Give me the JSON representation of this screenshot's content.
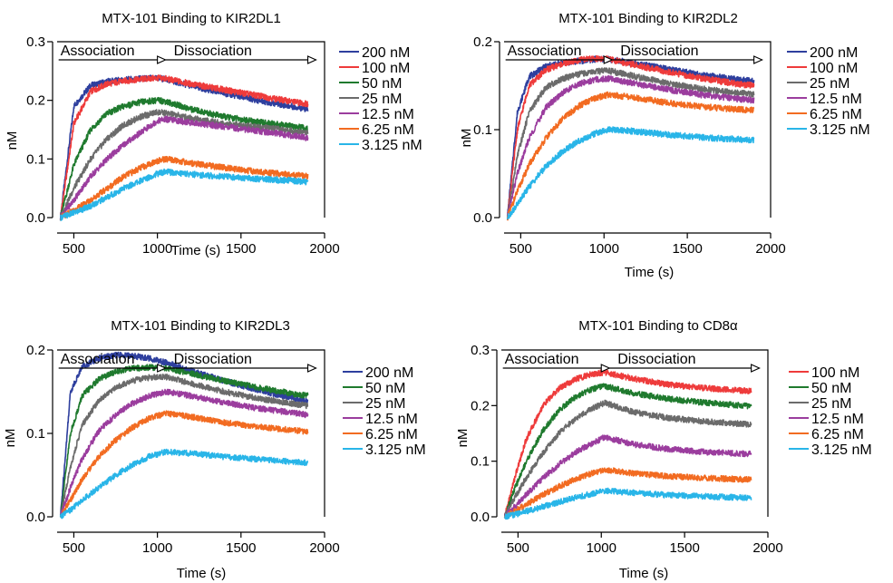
{
  "chart_data": [
    {
      "type": "line",
      "title": "MTX-101 Binding to KIR2DL1",
      "xlabel": "Time (s)",
      "ylabel": "nM",
      "xlim": [
        400,
        2000
      ],
      "ylim": [
        0,
        0.3
      ],
      "xticks": [
        "500",
        "1000",
        "1500",
        "2000"
      ],
      "yticks": [
        "0.0",
        "0.1",
        "0.2",
        "0.3"
      ],
      "phases": [
        "Association",
        "Dissociation"
      ],
      "series": [
        {
          "name": "200 nM",
          "color": "#2e3f9e",
          "x": [
            420,
            500,
            600,
            700,
            800,
            900,
            1000,
            1050,
            1200,
            1400,
            1600,
            1800,
            1900
          ],
          "y": [
            0.0,
            0.19,
            0.225,
            0.232,
            0.235,
            0.237,
            0.238,
            0.236,
            0.225,
            0.212,
            0.2,
            0.19,
            0.185
          ]
        },
        {
          "name": "100 nM",
          "color": "#ee3b3b",
          "x": [
            420,
            500,
            600,
            700,
            800,
            900,
            1000,
            1050,
            1200,
            1400,
            1600,
            1800,
            1900
          ],
          "y": [
            0.0,
            0.16,
            0.215,
            0.228,
            0.233,
            0.236,
            0.238,
            0.237,
            0.228,
            0.218,
            0.208,
            0.198,
            0.194
          ]
        },
        {
          "name": "50 nM",
          "color": "#1f7a2e",
          "x": [
            420,
            500,
            600,
            700,
            800,
            900,
            1000,
            1050,
            1200,
            1400,
            1600,
            1800,
            1900
          ],
          "y": [
            0.0,
            0.09,
            0.15,
            0.178,
            0.19,
            0.197,
            0.2,
            0.198,
            0.185,
            0.172,
            0.163,
            0.156,
            0.152
          ]
        },
        {
          "name": "25 nM",
          "color": "#6b6b6b",
          "x": [
            420,
            500,
            600,
            700,
            800,
            900,
            1000,
            1050,
            1200,
            1400,
            1600,
            1800,
            1900
          ],
          "y": [
            0.0,
            0.05,
            0.1,
            0.135,
            0.158,
            0.172,
            0.18,
            0.178,
            0.17,
            0.16,
            0.155,
            0.148,
            0.145
          ]
        },
        {
          "name": "12.5 nM",
          "color": "#9b3d9e",
          "x": [
            420,
            500,
            600,
            700,
            800,
            900,
            1000,
            1050,
            1200,
            1400,
            1600,
            1800,
            1900
          ],
          "y": [
            0.0,
            0.03,
            0.07,
            0.1,
            0.125,
            0.145,
            0.165,
            0.168,
            0.162,
            0.155,
            0.148,
            0.14,
            0.136
          ]
        },
        {
          "name": "6.25 nM",
          "color": "#f26b21",
          "x": [
            420,
            500,
            600,
            700,
            800,
            900,
            1000,
            1050,
            1200,
            1400,
            1600,
            1800,
            1900
          ],
          "y": [
            0.0,
            0.012,
            0.03,
            0.05,
            0.07,
            0.085,
            0.097,
            0.1,
            0.093,
            0.085,
            0.078,
            0.073,
            0.07
          ]
        },
        {
          "name": "3.125 nM",
          "color": "#29b5e8",
          "x": [
            420,
            500,
            600,
            700,
            800,
            900,
            1000,
            1050,
            1200,
            1400,
            1600,
            1800,
            1900
          ],
          "y": [
            0.0,
            0.008,
            0.02,
            0.035,
            0.05,
            0.063,
            0.075,
            0.078,
            0.074,
            0.07,
            0.066,
            0.063,
            0.061
          ]
        }
      ]
    },
    {
      "type": "line",
      "title": "MTX-101 Binding to KIR2DL2",
      "xlabel": "Time (s)",
      "ylabel": "nM",
      "xlim": [
        400,
        2000
      ],
      "ylim": [
        0,
        0.2
      ],
      "xticks": [
        "500",
        "1000",
        "1500",
        "2000"
      ],
      "yticks": [
        "0.0",
        "0.1",
        "0.2"
      ],
      "phases": [
        "Association",
        "Dissociation"
      ],
      "series": [
        {
          "name": "200 nM",
          "color": "#2e3f9e",
          "x": [
            420,
            480,
            550,
            650,
            750,
            850,
            950,
            1030,
            1200,
            1400,
            1600,
            1800,
            1900
          ],
          "y": [
            0.0,
            0.12,
            0.16,
            0.172,
            0.176,
            0.178,
            0.18,
            0.18,
            0.175,
            0.168,
            0.162,
            0.157,
            0.155
          ]
        },
        {
          "name": "100 nM",
          "color": "#ee3b3b",
          "x": [
            420,
            480,
            550,
            650,
            750,
            850,
            950,
            1030,
            1200,
            1400,
            1600,
            1800,
            1900
          ],
          "y": [
            0.0,
            0.1,
            0.15,
            0.168,
            0.175,
            0.179,
            0.181,
            0.18,
            0.173,
            0.165,
            0.158,
            0.152,
            0.15
          ]
        },
        {
          "name": "25 nM",
          "color": "#6b6b6b",
          "x": [
            420,
            480,
            550,
            650,
            750,
            850,
            950,
            1030,
            1200,
            1400,
            1600,
            1800,
            1900
          ],
          "y": [
            0.0,
            0.07,
            0.12,
            0.148,
            0.158,
            0.163,
            0.166,
            0.167,
            0.16,
            0.152,
            0.146,
            0.142,
            0.14
          ]
        },
        {
          "name": "12.5 nM",
          "color": "#9b3d9e",
          "x": [
            420,
            480,
            550,
            650,
            750,
            850,
            950,
            1030,
            1200,
            1400,
            1600,
            1800,
            1900
          ],
          "y": [
            0.0,
            0.05,
            0.09,
            0.125,
            0.142,
            0.152,
            0.157,
            0.158,
            0.152,
            0.145,
            0.139,
            0.135,
            0.133
          ]
        },
        {
          "name": "6.25 nM",
          "color": "#f26b21",
          "x": [
            420,
            480,
            550,
            650,
            750,
            850,
            950,
            1030,
            1200,
            1400,
            1600,
            1800,
            1900
          ],
          "y": [
            0.0,
            0.03,
            0.06,
            0.09,
            0.112,
            0.127,
            0.136,
            0.14,
            0.136,
            0.13,
            0.126,
            0.123,
            0.122
          ]
        },
        {
          "name": "3.125 nM",
          "color": "#29b5e8",
          "x": [
            420,
            480,
            550,
            650,
            750,
            850,
            950,
            1030,
            1200,
            1400,
            1600,
            1800,
            1900
          ],
          "y": [
            0.0,
            0.015,
            0.035,
            0.058,
            0.075,
            0.087,
            0.096,
            0.1,
            0.098,
            0.094,
            0.091,
            0.089,
            0.088
          ]
        }
      ]
    },
    {
      "type": "line",
      "title": "MTX-101 Binding to KIR2DL3",
      "xlabel": "Time (s)",
      "ylabel": "nM",
      "xlim": [
        400,
        2000
      ],
      "ylim": [
        0,
        0.2
      ],
      "xticks": [
        "500",
        "1000",
        "1500",
        "2000"
      ],
      "yticks": [
        "0.0",
        "0.1",
        "0.2"
      ],
      "phases": [
        "Association",
        "Dissociation"
      ],
      "series": [
        {
          "name": "200 nM",
          "color": "#2e3f9e",
          "x": [
            420,
            480,
            550,
            650,
            750,
            850,
            950,
            1050,
            1200,
            1400,
            1600,
            1800,
            1900
          ],
          "y": [
            0.0,
            0.15,
            0.18,
            0.19,
            0.194,
            0.193,
            0.19,
            0.185,
            0.175,
            0.163,
            0.152,
            0.143,
            0.138
          ]
        },
        {
          "name": "50 nM",
          "color": "#1f7a2e",
          "x": [
            420,
            480,
            550,
            650,
            750,
            850,
            950,
            1050,
            1200,
            1400,
            1600,
            1800,
            1900
          ],
          "y": [
            0.0,
            0.1,
            0.145,
            0.165,
            0.174,
            0.178,
            0.179,
            0.178,
            0.172,
            0.163,
            0.155,
            0.148,
            0.145
          ]
        },
        {
          "name": "25 nM",
          "color": "#6b6b6b",
          "x": [
            420,
            480,
            550,
            650,
            750,
            850,
            950,
            1050,
            1200,
            1400,
            1600,
            1800,
            1900
          ],
          "y": [
            0.0,
            0.06,
            0.11,
            0.14,
            0.155,
            0.163,
            0.167,
            0.168,
            0.16,
            0.15,
            0.142,
            0.136,
            0.133
          ]
        },
        {
          "name": "12.5 nM",
          "color": "#9b3d9e",
          "x": [
            420,
            480,
            550,
            650,
            750,
            850,
            950,
            1050,
            1200,
            1400,
            1600,
            1800,
            1900
          ],
          "y": [
            0.0,
            0.035,
            0.07,
            0.103,
            0.122,
            0.136,
            0.145,
            0.15,
            0.145,
            0.137,
            0.13,
            0.125,
            0.122
          ]
        },
        {
          "name": "6.25 nM",
          "color": "#f26b21",
          "x": [
            420,
            480,
            550,
            650,
            750,
            850,
            950,
            1050,
            1200,
            1400,
            1600,
            1800,
            1900
          ],
          "y": [
            0.0,
            0.02,
            0.045,
            0.072,
            0.092,
            0.107,
            0.118,
            0.124,
            0.12,
            0.113,
            0.108,
            0.104,
            0.102
          ]
        },
        {
          "name": "3.125 nM",
          "color": "#29b5e8",
          "x": [
            420,
            480,
            550,
            650,
            750,
            850,
            950,
            1050,
            1200,
            1400,
            1600,
            1800,
            1900
          ],
          "y": [
            0.0,
            0.008,
            0.02,
            0.035,
            0.05,
            0.062,
            0.072,
            0.078,
            0.076,
            0.072,
            0.069,
            0.066,
            0.065
          ]
        }
      ]
    },
    {
      "type": "line",
      "title": "MTX-101 Binding to CD8α",
      "xlabel": "Time (s)",
      "ylabel": "nM",
      "xlim": [
        400,
        2000
      ],
      "ylim": [
        0,
        0.3
      ],
      "xticks": [
        "500",
        "1000",
        "1500",
        "2000"
      ],
      "yticks": [
        "0.0",
        "0.1",
        "0.2",
        "0.3"
      ],
      "phases": [
        "Association",
        "Dissociation"
      ],
      "series": [
        {
          "name": "100 nM",
          "color": "#ee3b3b",
          "x": [
            420,
            480,
            550,
            650,
            750,
            850,
            950,
            1020,
            1200,
            1400,
            1600,
            1800,
            1900
          ],
          "y": [
            0.0,
            0.07,
            0.14,
            0.2,
            0.232,
            0.248,
            0.257,
            0.26,
            0.248,
            0.238,
            0.232,
            0.228,
            0.226
          ]
        },
        {
          "name": "50 nM",
          "color": "#1f7a2e",
          "x": [
            420,
            480,
            550,
            650,
            750,
            850,
            950,
            1020,
            1200,
            1400,
            1600,
            1800,
            1900
          ],
          "y": [
            0.0,
            0.05,
            0.1,
            0.155,
            0.193,
            0.217,
            0.23,
            0.235,
            0.222,
            0.212,
            0.206,
            0.201,
            0.199
          ]
        },
        {
          "name": "25 nM",
          "color": "#6b6b6b",
          "x": [
            420,
            480,
            550,
            650,
            750,
            850,
            950,
            1020,
            1200,
            1400,
            1600,
            1800,
            1900
          ],
          "y": [
            0.0,
            0.035,
            0.07,
            0.115,
            0.152,
            0.178,
            0.196,
            0.205,
            0.188,
            0.178,
            0.172,
            0.168,
            0.166
          ]
        },
        {
          "name": "12.5 nM",
          "color": "#9b3d9e",
          "x": [
            420,
            480,
            550,
            650,
            750,
            850,
            950,
            1020,
            1200,
            1400,
            1600,
            1800,
            1900
          ],
          "y": [
            0.0,
            0.018,
            0.04,
            0.07,
            0.095,
            0.117,
            0.133,
            0.143,
            0.13,
            0.122,
            0.117,
            0.114,
            0.113
          ]
        },
        {
          "name": "6.25 nM",
          "color": "#f26b21",
          "x": [
            420,
            480,
            550,
            650,
            750,
            850,
            950,
            1020,
            1200,
            1400,
            1600,
            1800,
            1900
          ],
          "y": [
            0.0,
            0.01,
            0.022,
            0.04,
            0.055,
            0.068,
            0.079,
            0.085,
            0.078,
            0.073,
            0.07,
            0.068,
            0.067
          ]
        },
        {
          "name": "3.125 nM",
          "color": "#29b5e8",
          "x": [
            420,
            480,
            550,
            650,
            750,
            850,
            950,
            1020,
            1200,
            1400,
            1600,
            1800,
            1900
          ],
          "y": [
            0.0,
            0.004,
            0.01,
            0.018,
            0.027,
            0.035,
            0.042,
            0.047,
            0.043,
            0.039,
            0.037,
            0.035,
            0.034
          ]
        }
      ]
    }
  ]
}
